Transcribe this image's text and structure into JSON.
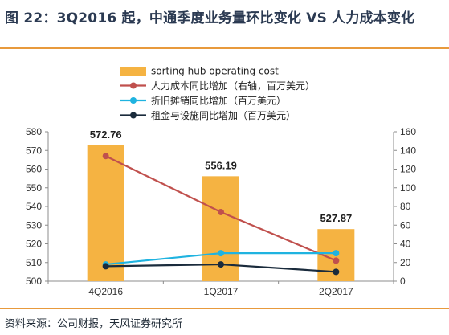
{
  "header": {
    "title": "图 22：3Q2016 起，中通季度业务量环比变化 VS 人力成本变化"
  },
  "footer": {
    "source": "资料来源：公司财报，天风证券研究所"
  },
  "chart_data": {
    "type": "bar",
    "categories": [
      "4Q2016",
      "1Q2017",
      "2Q2017"
    ],
    "series": [
      {
        "name": "sorting hub operating cost",
        "type": "bar",
        "axis": "left",
        "values": [
          572.76,
          556.19,
          527.87
        ],
        "data_labels": [
          "572.76",
          "556.19",
          "527.87"
        ],
        "color": "#f5b342"
      },
      {
        "name": "人力成本同比增加（右轴，百万美元）",
        "type": "line",
        "axis": "right",
        "values": [
          134,
          74,
          22
        ],
        "color": "#c0504d"
      },
      {
        "name": "折旧摊销同比增加（百万美元）",
        "type": "line",
        "axis": "right",
        "values": [
          18,
          30,
          30
        ],
        "color": "#1fb3e0"
      },
      {
        "name": "租金与设施同比增加（百万美元）",
        "type": "line",
        "axis": "right",
        "values": [
          16,
          18,
          10
        ],
        "color": "#1a2b3c"
      }
    ],
    "y_left": {
      "min": 500,
      "max": 580,
      "ticks": [
        500,
        510,
        520,
        530,
        540,
        550,
        560,
        570,
        580
      ]
    },
    "y_right": {
      "min": 0,
      "max": 160,
      "ticks": [
        0,
        20,
        40,
        60,
        80,
        100,
        120,
        140,
        160
      ]
    },
    "legend_position": "top-center",
    "grid": false
  }
}
